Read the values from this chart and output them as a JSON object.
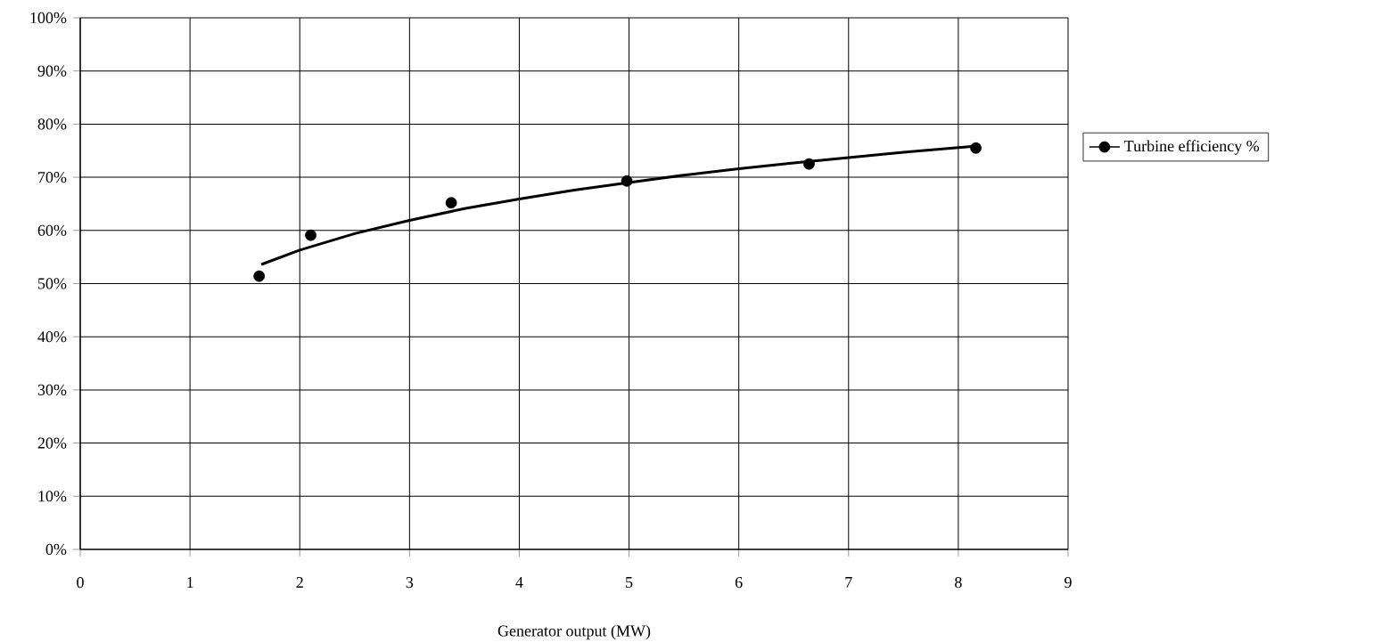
{
  "chart_data": {
    "type": "scatter",
    "xlabel": "Generator output (MW)",
    "xlim": [
      0,
      9
    ],
    "xticks": [
      0,
      1,
      2,
      3,
      4,
      5,
      6,
      7,
      8,
      9
    ],
    "ylim": [
      0,
      100
    ],
    "yticks": [
      {
        "value": 0,
        "label": "0%"
      },
      {
        "value": 10,
        "label": "10%"
      },
      {
        "value": 20,
        "label": "20%"
      },
      {
        "value": 30,
        "label": "30%"
      },
      {
        "value": 40,
        "label": "40%"
      },
      {
        "value": 50,
        "label": "50%"
      },
      {
        "value": 60,
        "label": "60%"
      },
      {
        "value": 70,
        "label": "70%"
      },
      {
        "value": 80,
        "label": "80%"
      },
      {
        "value": 90,
        "label": "90%"
      },
      {
        "value": 100,
        "label": "100%"
      }
    ],
    "grid": true,
    "legend": "right",
    "line_style": "solid",
    "series": [
      {
        "name": "Turbine efficiency %",
        "marker": "circle",
        "color": "#000000",
        "x": [
          1.63,
          2.1,
          3.38,
          4.98,
          6.64,
          8.16
        ],
        "values": [
          51.4,
          59.1,
          65.2,
          69.3,
          72.5,
          75.5
        ]
      },
      {
        "type": "line",
        "color": "#000000",
        "x": [
          1.65,
          2,
          2.5,
          3,
          3.5,
          4,
          4.5,
          5,
          5.5,
          6,
          6.5,
          7,
          7.5,
          8,
          8.2
        ],
        "values": [
          53.6,
          56.3,
          59.4,
          61.9,
          64.1,
          65.9,
          67.6,
          69.0,
          70.4,
          71.6,
          72.7,
          73.7,
          74.7,
          75.6,
          75.9
        ]
      }
    ]
  }
}
